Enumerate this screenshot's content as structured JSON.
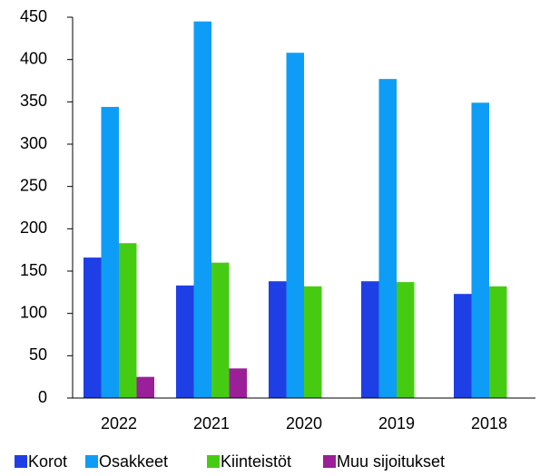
{
  "chart_data": {
    "type": "bar",
    "categories": [
      "2022",
      "2021",
      "2020",
      "2019",
      "2018"
    ],
    "series": [
      {
        "name": "Korot",
        "color": "#1f3fe6",
        "values": [
          166,
          133,
          138,
          138,
          123
        ]
      },
      {
        "name": "Osakkeet",
        "color": "#0d9df6",
        "values": [
          344,
          445,
          408,
          377,
          349
        ]
      },
      {
        "name": "Kiinteistöt",
        "color": "#45cc12",
        "values": [
          183,
          160,
          132,
          137,
          132
        ]
      },
      {
        "name": "Muu sijoitukset",
        "color": "#9a1f98",
        "values": [
          25,
          35,
          null,
          null,
          null
        ]
      }
    ],
    "ylim": [
      0,
      450
    ],
    "yticks": [
      0,
      50,
      100,
      150,
      200,
      250,
      300,
      350,
      400,
      450
    ],
    "grid": false,
    "legend": "bottom"
  }
}
